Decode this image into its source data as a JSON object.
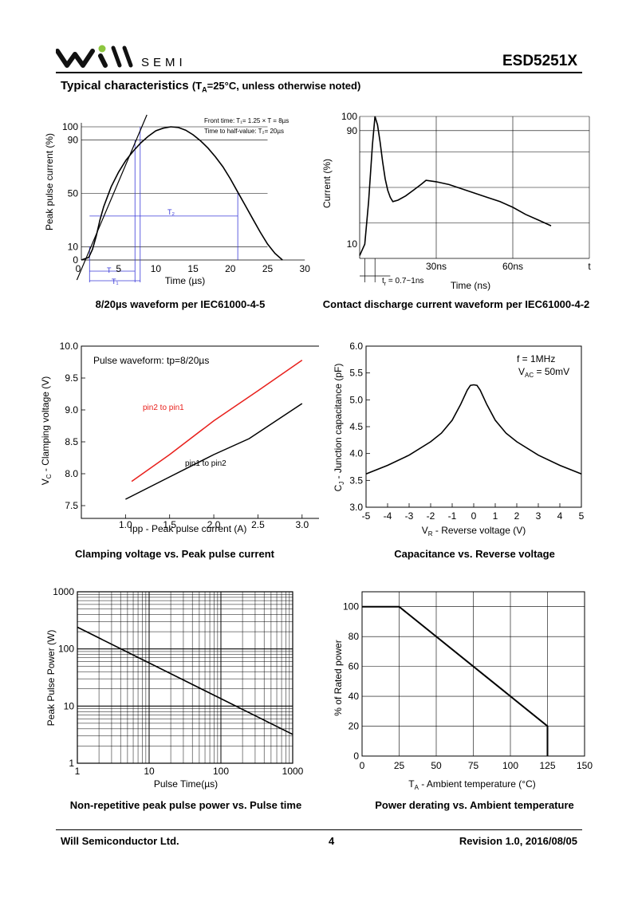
{
  "header": {
    "brand": "SEMI",
    "part_number": "ESD5251X",
    "section_title": "Typical characteristics",
    "section_condition_pre": "(T",
    "section_condition_sub": "A",
    "section_condition_post": "=25°C, unless otherwise noted)"
  },
  "footer": {
    "company": "Will Semiconductor Ltd.",
    "page": "4",
    "revision": "Revision 1.0, 2016/08/05"
  },
  "colors": {
    "curve": "#000000",
    "pin2": "#e8201c",
    "grid": "#000000",
    "guide": "#3a3ad8",
    "logo_dot": "#8dc63f"
  },
  "chart_data": [
    {
      "id": "c1",
      "type": "line",
      "caption": "8/20µs waveform per IEC61000-4-5",
      "xlabel": "Time (µs)",
      "ylabel": "Peak pulse current (%)",
      "xlim": [
        0,
        30
      ],
      "ylim": [
        0,
        105
      ],
      "x_ticks": [
        "0",
        "5",
        "10",
        "15",
        "20",
        "25",
        "30"
      ],
      "y_ticks": [
        "0",
        "10",
        "50",
        "90",
        "100"
      ],
      "notes": [
        "Front time: T₁= 1.25 × T = 8µs",
        "Time to half-value: T₂= 20µs"
      ],
      "markers": [
        "T",
        "T₁",
        "T₂"
      ],
      "x": [
        0,
        1,
        1.5,
        2,
        2.5,
        3,
        4,
        5,
        6,
        7,
        8,
        9,
        10,
        11,
        12,
        13,
        14,
        15,
        16,
        17,
        18,
        19,
        20,
        21,
        22,
        23,
        24,
        25,
        26,
        27
      ],
      "y": [
        0,
        2,
        8,
        18,
        30,
        40,
        55,
        66,
        75,
        82,
        88,
        93,
        97,
        99,
        100,
        99.5,
        97.5,
        94,
        89.5,
        84,
        77.5,
        70,
        61,
        51,
        41,
        31,
        21,
        12,
        5,
        0
      ]
    },
    {
      "id": "c2",
      "type": "line",
      "caption": "Contact discharge current waveform per IEC61000-4-2",
      "xlabel": "Time (ns)",
      "ylabel": "Current (%)",
      "xlim": [
        0,
        90
      ],
      "ylim": [
        0,
        100
      ],
      "x_ticks": [
        "30ns",
        "60ns",
        "t"
      ],
      "y_ticks": [
        "10",
        "90",
        "100"
      ],
      "rise_note": "t",
      "rise_note_sub": "r",
      "rise_note_tail": " = 0.7~1ns",
      "x": [
        0,
        2,
        3.5,
        5,
        6,
        7,
        8,
        9,
        10,
        11,
        12,
        13,
        15,
        18,
        21,
        24,
        26,
        30,
        35,
        40,
        45,
        50,
        55,
        60,
        65,
        70,
        75
      ],
      "y": [
        2,
        10,
        40,
        80,
        100,
        94,
        82,
        68,
        56,
        48,
        43,
        40,
        41,
        44,
        48,
        52,
        55,
        54,
        52,
        49,
        46,
        43,
        40,
        36,
        31,
        27,
        23
      ]
    },
    {
      "id": "c3",
      "type": "line",
      "caption": "Clamping voltage vs. Peak pulse current",
      "xlabel": "Ipp - Peak pulse current (A)",
      "ylabel_pre": "V",
      "ylabel_sub": "C",
      "ylabel_post": " - Clamping voltage (V)",
      "xlim": [
        0.5,
        3.3
      ],
      "ylim": [
        7.3,
        10.0
      ],
      "x_ticks": [
        "1.0",
        "1.5",
        "2.0",
        "2.5",
        "3.0"
      ],
      "y_ticks": [
        "7.5",
        "8.0",
        "8.5",
        "9.0",
        "9.5",
        "10.0"
      ],
      "legend_text": "Pulse waveform: tp=8/20µs",
      "series": [
        {
          "name": "pin2 to pin1",
          "x": [
            1.07,
            1.5,
            2.0,
            2.5,
            3.0
          ],
          "y": [
            7.88,
            8.3,
            8.83,
            9.3,
            9.78
          ]
        },
        {
          "name": "pin1 to pin2",
          "x": [
            1.0,
            1.5,
            2.0,
            2.4,
            3.0
          ],
          "y": [
            7.6,
            7.95,
            8.3,
            8.55,
            9.1
          ]
        }
      ]
    },
    {
      "id": "c4",
      "type": "line",
      "caption": "Capacitance vs. Reverse voltage",
      "xlabel_pre": "V",
      "xlabel_sub": "R",
      "xlabel_post": " - Reverse voltage (V)",
      "ylabel_pre": "C",
      "ylabel_sub": "J",
      "ylabel_post": " - Junction capacitance (pF)",
      "xlim": [
        -5,
        5
      ],
      "ylim": [
        3.0,
        6.0
      ],
      "x_ticks": [
        "-5",
        "-4",
        "-3",
        "-2",
        "-1",
        "0",
        "1",
        "2",
        "3",
        "4",
        "5"
      ],
      "y_ticks": [
        "3.0",
        "3.5",
        "4.0",
        "4.5",
        "5.0",
        "5.5",
        "6.0"
      ],
      "cond1": "f = 1MHz",
      "cond2_pre": "V",
      "cond2_sub": "AC",
      "cond2_post": " = 50mV",
      "x": [
        -5,
        -4,
        -3,
        -2,
        -1.5,
        -1,
        -0.6,
        -0.3,
        -0.15,
        0,
        0.15,
        0.3,
        0.6,
        1,
        1.5,
        2,
        3,
        4,
        5
      ],
      "y": [
        3.62,
        3.78,
        3.97,
        4.22,
        4.38,
        4.62,
        4.92,
        5.18,
        5.27,
        5.28,
        5.27,
        5.18,
        4.92,
        4.62,
        4.38,
        4.22,
        3.97,
        3.78,
        3.62
      ]
    },
    {
      "id": "c5",
      "type": "line",
      "caption": "Non-repetitive peak pulse power vs. Pulse time",
      "xlabel": "Pulse Time(µs)",
      "ylabel": "Peak Pulse Power (W)",
      "x_scale": "log",
      "y_scale": "log",
      "xlim": [
        1,
        1000
      ],
      "ylim": [
        1,
        1000
      ],
      "x_ticks": [
        "1",
        "10",
        "100",
        "1000"
      ],
      "y_ticks": [
        "1",
        "10",
        "100",
        "1000"
      ],
      "x": [
        1,
        1000
      ],
      "y": [
        240,
        3.2
      ]
    },
    {
      "id": "c6",
      "type": "line",
      "caption": "Power derating vs. Ambient temperature",
      "xlabel_pre": "T",
      "xlabel_sub": "A",
      "xlabel_post": " - Ambient temperature (°C)",
      "ylabel": "% of Rated power",
      "xlim": [
        0,
        150
      ],
      "ylim": [
        0,
        110
      ],
      "x_ticks": [
        "0",
        "25",
        "50",
        "75",
        "100",
        "125",
        "150"
      ],
      "y_ticks": [
        "0",
        "20",
        "40",
        "60",
        "80",
        "100"
      ],
      "x": [
        0,
        25,
        125,
        125
      ],
      "y": [
        100,
        100,
        20,
        0
      ]
    }
  ]
}
